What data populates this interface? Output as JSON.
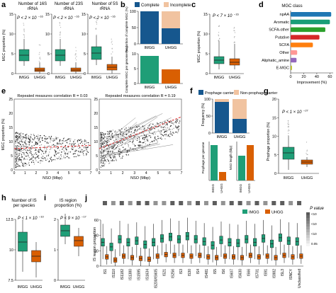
{
  "colors": {
    "imgg": "#1f9e77",
    "uhgg": "#d95f02",
    "complete": "#16578e",
    "incomplete": "#f1c3a0",
    "prophage": "#16578e",
    "non_prophage": "#f1c3a0",
    "points": "#333333",
    "fit": "#e03030"
  },
  "panels": {
    "a": {
      "letter": "a",
      "titles": [
        "Number of 16S\nrRNA",
        "Number of 23S\nrRNA",
        "Number of 5S\nrRNA"
      ],
      "pvalue": "P < 2 × 10",
      "exponent": "−16",
      "yticks": [
        "0",
        "5",
        "10",
        "15"
      ],
      "ylabel": "MGC proportion (%)",
      "groups": [
        "IMGG",
        "UHGG"
      ]
    },
    "b": {
      "letter": "b",
      "legend": [
        "Complete",
        "Incomplete"
      ],
      "ylabel_top": "Proportion of complete MGC (%)",
      "ylabel_bottom": "Complete MGC per genome (no.)",
      "yticks_top": [
        "0",
        "50",
        "100"
      ],
      "yticks_bottom": [
        "0",
        "5",
        "10"
      ],
      "groups": [
        "IMGG",
        "UHGG"
      ]
    },
    "c": {
      "letter": "c",
      "pvalue": "P < 7 × 10",
      "exponent": "−16",
      "ylabel": "MGC proportion (%)",
      "yticks": [
        "0",
        "5",
        "10",
        "15"
      ],
      "groups": [
        "IMGG",
        "UHGG"
      ]
    },
    "d": {
      "letter": "d",
      "title": "MGC class",
      "categories": [
        "npAA",
        "Aromatic",
        "SCFA-other",
        "Putative",
        "SCFA",
        "Other",
        "Aliphatic_amine",
        "E-MGC"
      ],
      "values": [
        62,
        60,
        53,
        44,
        34,
        10,
        9,
        2
      ],
      "bar_colors": [
        "#1f77b4",
        "#1a9e77",
        "#2ca02c",
        "#d62728",
        "#ff7f0e",
        "#ff9896",
        "#9467bd",
        "#bcbd22"
      ],
      "xlabel": "Improvement (%)",
      "xticks": [
        "0",
        "20",
        "40",
        "60"
      ]
    },
    "e": {
      "letter": "e",
      "left_title": "Repeated measures correlation R = 0.03",
      "right_title": "Repeated measures correlation R = 0.19",
      "xlabel": "NSO (Mbp)",
      "ylabel": "MGC proportion (%)",
      "xticks": [
        "0",
        "1",
        "2",
        "3",
        "4",
        "5",
        "6",
        "7"
      ],
      "yticks": [
        "0",
        "5",
        "10",
        "15",
        "20",
        "25"
      ]
    },
    "f": {
      "letter": "f",
      "legend": [
        "Prophage carrier",
        "Non-prophage carrier"
      ],
      "ylabel_top": "Frequency (%)",
      "ylabel_left": "Prophage per genome",
      "ylabel_right": "NSO length (kbp)",
      "yticks_top": [
        "0",
        "50",
        "100"
      ],
      "groups": [
        "IMGG",
        "UHGG"
      ]
    },
    "g": {
      "letter": "g",
      "pvalue": "P < 1 × 10",
      "exponent": "−27",
      "ylabel": "Prophage proportion (%)",
      "yticks": [
        "0",
        "5",
        "10",
        "15",
        "20"
      ],
      "groups": [
        "IMGG",
        "UHGG"
      ]
    },
    "h": {
      "letter": "h",
      "title": "Number of IS\nper species",
      "pvalue": "P < 1 × 10",
      "exponent": "−10",
      "yticks": [
        "7.5",
        "10",
        "12.5"
      ],
      "groups": [
        "IMGG",
        "UHGG"
      ]
    },
    "i": {
      "letter": "i",
      "title": "IS region\nproportion (%)",
      "pvalue": "P < 9 × 10",
      "exponent": "−17",
      "yticks": [
        "0",
        "1",
        "2"
      ],
      "groups": [
        "IMGG",
        "UHGG"
      ]
    },
    "j": {
      "letter": "j",
      "legend": [
        "IMGG",
        "UHGG"
      ],
      "legend_pvalue": "P value",
      "legend_ticks": [
        "<10",
        "<10",
        "<10",
        "0.05"
      ],
      "ylabel": "IS region proportion",
      "yticks": [
        "0",
        "20",
        "40",
        "60"
      ],
      "families": [
        "IS1",
        "IS110",
        "IS1182",
        "IS1380",
        "IS1595",
        "IS1634",
        "IS200/IS605",
        "IS21",
        "IS256",
        "IS3",
        "IS30",
        "IS4",
        "IS481",
        "IS5",
        "IS6",
        "IS607",
        "IS630",
        "IS66",
        "IS701",
        "IS91",
        "IS982",
        "ISL3",
        "ISNCY",
        "Unclassified"
      ],
      "imgg_values": [
        31,
        25,
        35,
        31,
        33,
        28,
        31,
        36,
        38,
        35,
        39,
        35,
        32,
        27,
        34,
        31,
        30,
        35,
        31,
        36,
        29,
        37,
        33,
        32
      ],
      "uhgg_values": [
        12,
        8,
        13,
        11,
        10,
        9,
        13,
        15,
        14,
        14,
        13,
        14,
        12,
        11,
        13,
        12,
        11,
        14,
        12,
        13,
        11,
        14,
        12,
        13
      ],
      "pvalue_levels": [
        0.9,
        0.6,
        0.9,
        0.6,
        0.9,
        0.9,
        0.6,
        0.6,
        0.9,
        0.9,
        0.6,
        0.9,
        0.6,
        0.9,
        0.6,
        0.9,
        0.9,
        0.6,
        0.9,
        0.6,
        0.9,
        0.9,
        0.6,
        0.9
      ]
    }
  }
}
